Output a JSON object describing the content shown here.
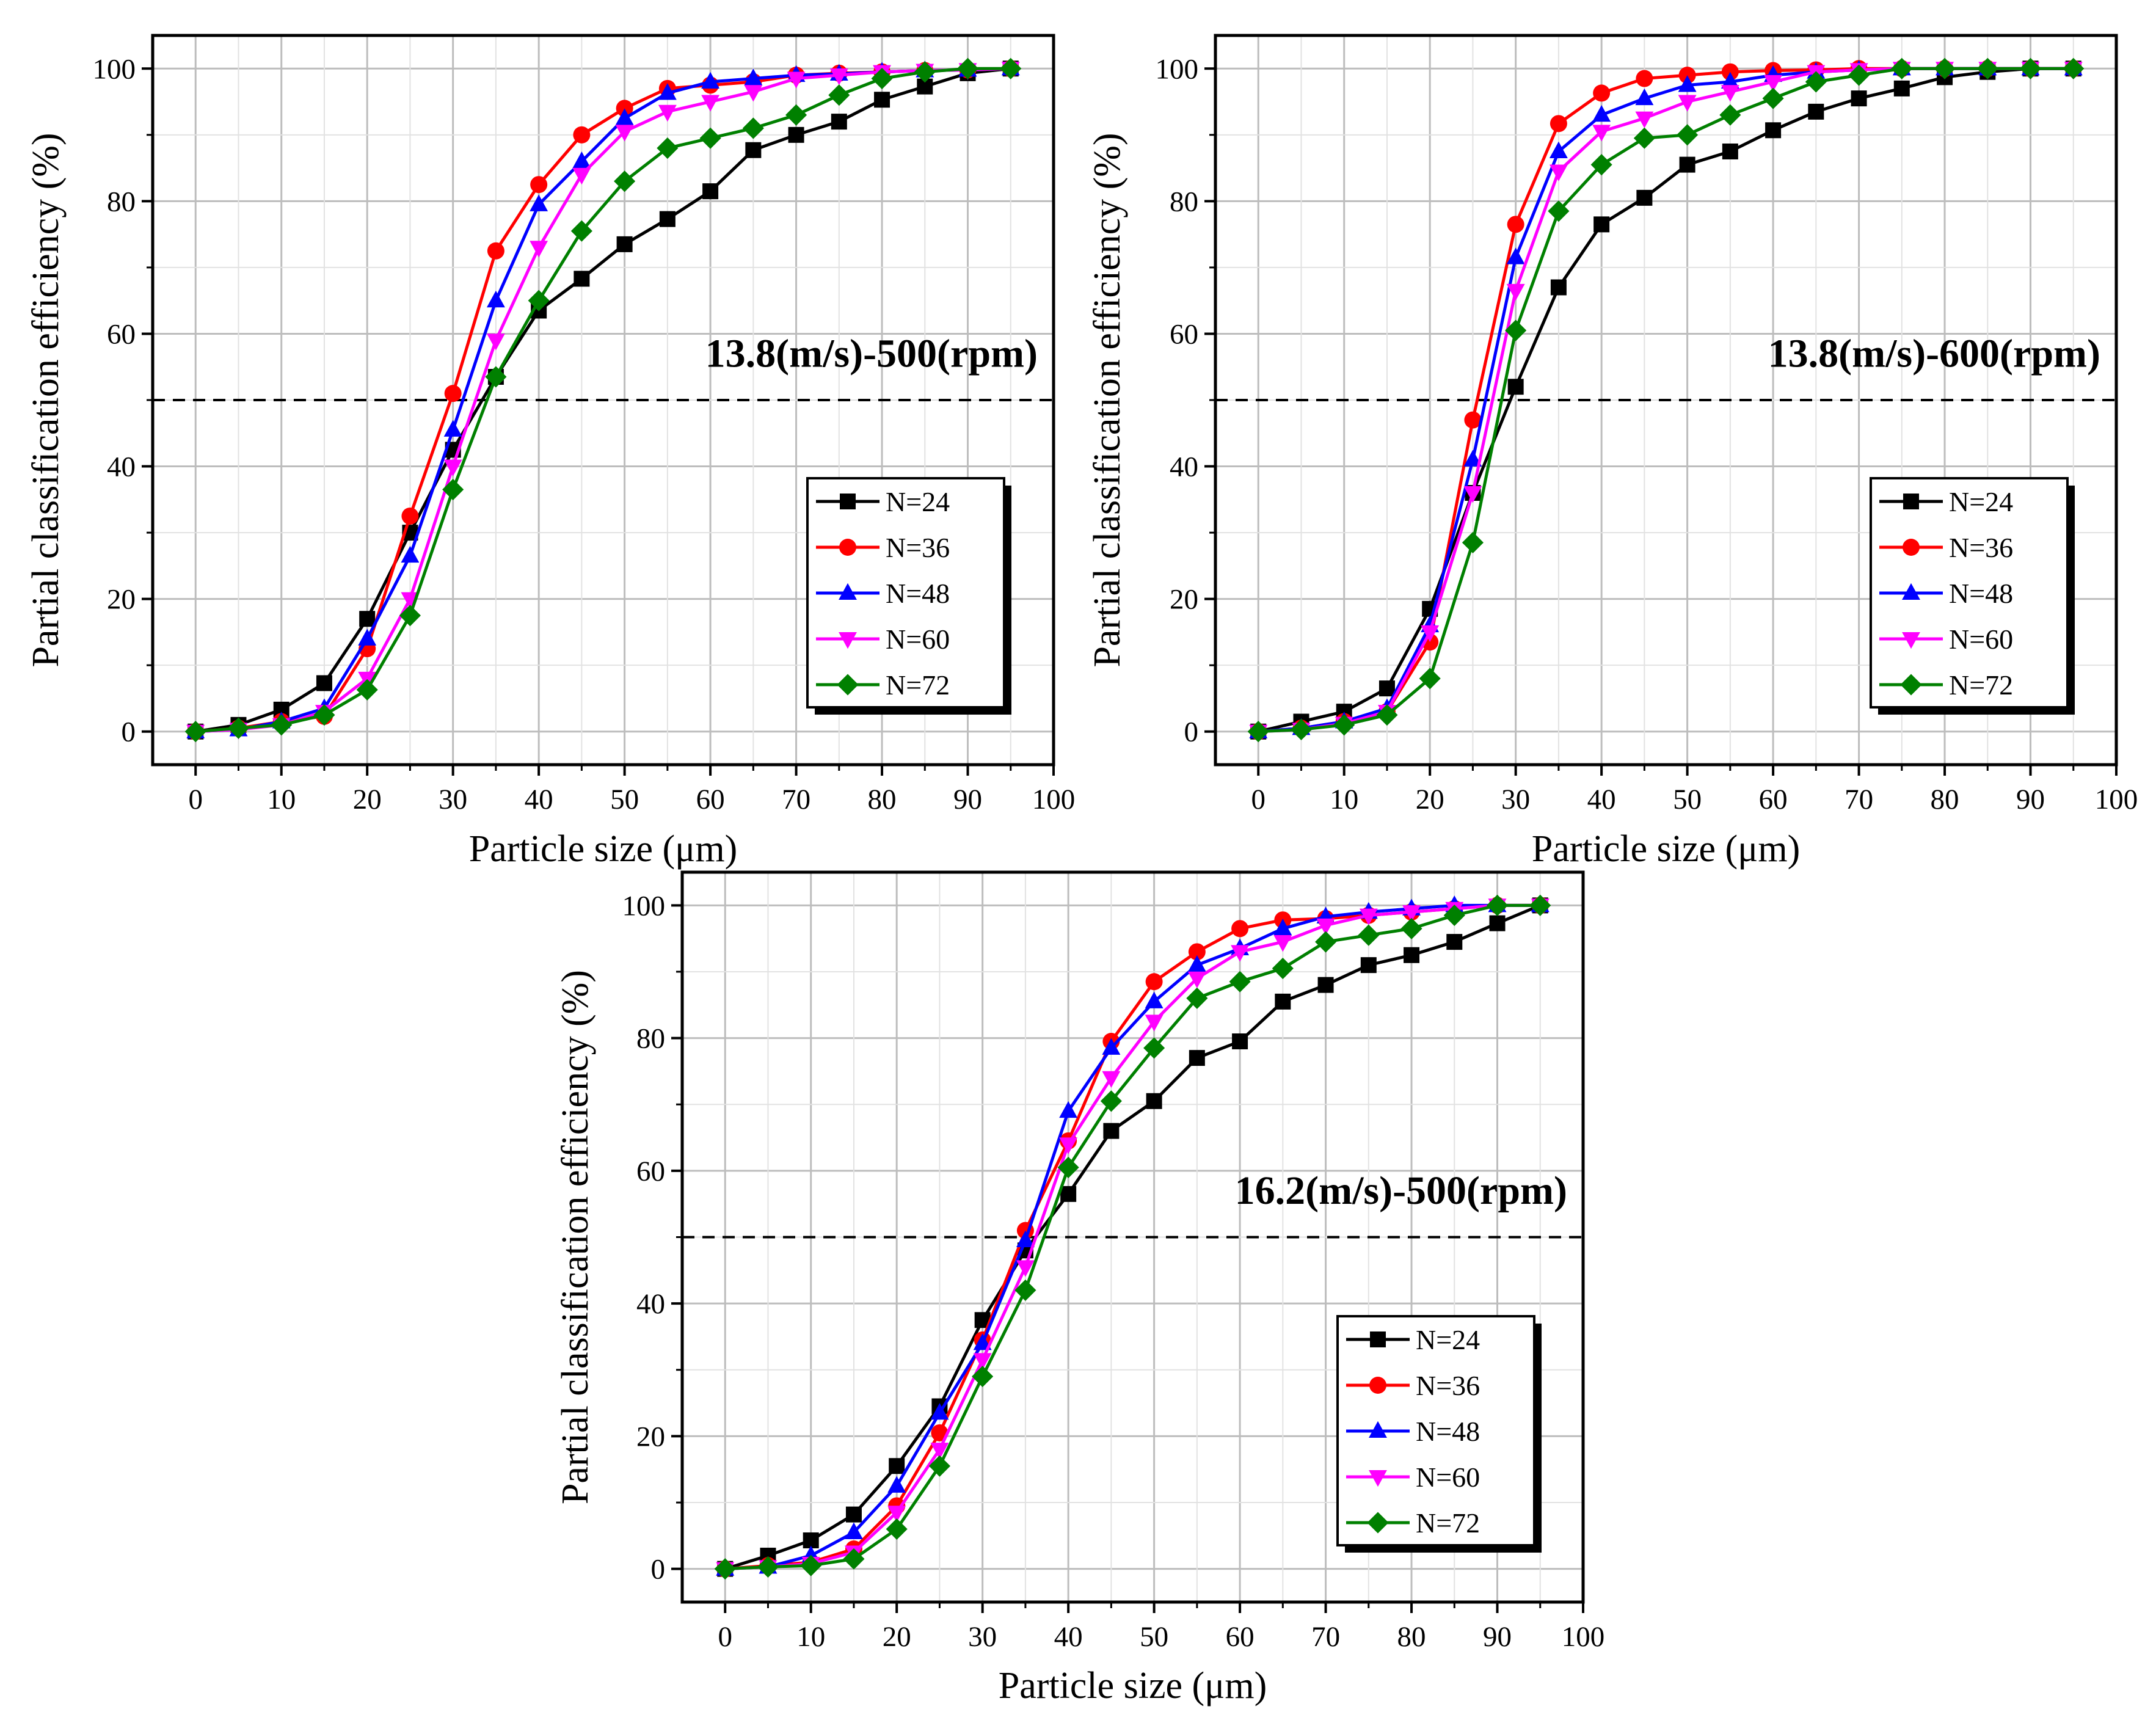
{
  "colors": {
    "N=24": "#000000",
    "N=36": "#ff0000",
    "N=48": "#0000ff",
    "N=60": "#ff00ff",
    "N=72": "#008000"
  },
  "chart_data": [
    {
      "type": "line",
      "title": "13.8(m/s)-500(rpm)",
      "xlabel": "Particle size (μm)",
      "ylabel": "Partial classification efficiency (%)",
      "xlim": [
        -5,
        100
      ],
      "ylim": [
        -5,
        105
      ],
      "xticks": [
        0,
        10,
        20,
        30,
        40,
        50,
        60,
        70,
        80,
        90,
        100
      ],
      "yticks": [
        0,
        20,
        40,
        60,
        80,
        100
      ],
      "reference_line_y": 50,
      "legend_position": "lower-right",
      "x": [
        0,
        5,
        10,
        15,
        20,
        25,
        30,
        35,
        40,
        45,
        50,
        55,
        60,
        65,
        70,
        75,
        80,
        85,
        90,
        95
      ],
      "series": [
        {
          "name": "N=24",
          "marker": "square",
          "values": [
            0,
            1,
            3.3,
            7.3,
            17,
            30,
            42.5,
            53.5,
            63.5,
            68.3,
            73.5,
            77.3,
            81.5,
            87.7,
            90,
            92,
            95.3,
            97.3,
            99.3,
            100
          ]
        },
        {
          "name": "N=36",
          "marker": "circle",
          "values": [
            0,
            0.5,
            1.5,
            2.3,
            12.5,
            32.5,
            51,
            72.5,
            82.5,
            90,
            94,
            97,
            97.5,
            98,
            99,
            99.3,
            99.5,
            99.7,
            99.8,
            100
          ]
        },
        {
          "name": "N=48",
          "marker": "triangle-up",
          "values": [
            0,
            0.3,
            1.5,
            3.5,
            14,
            26.5,
            45.5,
            65,
            79.5,
            86,
            92.5,
            96.3,
            98,
            98.5,
            99,
            99.2,
            99.5,
            99.7,
            99.8,
            100
          ]
        },
        {
          "name": "N=60",
          "marker": "triangle-down",
          "values": [
            0,
            0.3,
            1,
            3,
            8,
            20,
            40,
            59,
            73,
            84,
            90.5,
            93.5,
            95,
            96.5,
            98.5,
            99,
            99.5,
            99.7,
            99.8,
            100
          ]
        },
        {
          "name": "N=72",
          "marker": "diamond",
          "values": [
            0,
            0.5,
            1,
            2.5,
            6.3,
            17.5,
            36.5,
            53.5,
            65,
            75.5,
            83,
            88,
            89.5,
            91,
            93,
            96,
            98.5,
            99.5,
            100,
            100
          ]
        }
      ]
    },
    {
      "type": "line",
      "title": "13.8(m/s)-600(rpm)",
      "xlabel": "Particle size (μm)",
      "ylabel": "Partial classification efficiency (%)",
      "xlim": [
        -5,
        100
      ],
      "ylim": [
        -5,
        105
      ],
      "xticks": [
        0,
        10,
        20,
        30,
        40,
        50,
        60,
        70,
        80,
        90,
        100
      ],
      "yticks": [
        0,
        20,
        40,
        60,
        80,
        100
      ],
      "reference_line_y": 50,
      "legend_position": "lower-right",
      "x": [
        0,
        5,
        10,
        15,
        20,
        25,
        30,
        35,
        40,
        45,
        50,
        55,
        60,
        65,
        70,
        75,
        80,
        85,
        90,
        95
      ],
      "series": [
        {
          "name": "N=24",
          "marker": "square",
          "values": [
            0,
            1.5,
            3,
            6.5,
            18.5,
            36,
            52,
            67,
            76.5,
            80.5,
            85.5,
            87.5,
            90.7,
            93.5,
            95.5,
            97,
            98.7,
            99.5,
            100,
            100
          ]
        },
        {
          "name": "N=36",
          "marker": "circle",
          "values": [
            0,
            0.5,
            1.5,
            3,
            13.5,
            47,
            76.5,
            91.7,
            96.3,
            98.5,
            99,
            99.5,
            99.7,
            99.8,
            100,
            100,
            100,
            100,
            100,
            100
          ]
        },
        {
          "name": "N=48",
          "marker": "triangle-up",
          "values": [
            0,
            0.5,
            1.5,
            3.5,
            16,
            41,
            71.5,
            87.5,
            93,
            95.5,
            97.5,
            98,
            99,
            99.5,
            99.8,
            100,
            100,
            100,
            100,
            100
          ]
        },
        {
          "name": "N=60",
          "marker": "triangle-down",
          "values": [
            0,
            0.3,
            1.2,
            3,
            15,
            36,
            66.5,
            84.5,
            90.5,
            92.5,
            95,
            96.5,
            98,
            99.5,
            99.8,
            100,
            100,
            100,
            100,
            100
          ]
        },
        {
          "name": "N=72",
          "marker": "diamond",
          "values": [
            0,
            0.3,
            1,
            2.5,
            8,
            28.5,
            60.5,
            78.5,
            85.5,
            89.5,
            90,
            93,
            95.5,
            98,
            99,
            100,
            100,
            100,
            100,
            100
          ]
        }
      ]
    },
    {
      "type": "line",
      "title": "16.2(m/s)-500(rpm)",
      "xlabel": "Particle size (μm)",
      "ylabel": "Partial classification efficiency (%)",
      "xlim": [
        -5,
        100
      ],
      "ylim": [
        -5,
        105
      ],
      "xticks": [
        0,
        10,
        20,
        30,
        40,
        50,
        60,
        70,
        80,
        90,
        100
      ],
      "yticks": [
        0,
        20,
        40,
        60,
        80,
        100
      ],
      "reference_line_y": 50,
      "legend_position": "lower-right",
      "x": [
        0,
        5,
        10,
        15,
        20,
        25,
        30,
        35,
        40,
        45,
        50,
        55,
        60,
        65,
        70,
        75,
        80,
        85,
        90,
        95
      ],
      "series": [
        {
          "name": "N=24",
          "marker": "square",
          "values": [
            0,
            2,
            4.3,
            8.2,
            15.5,
            24.5,
            37.5,
            48,
            56.5,
            66,
            70.5,
            77,
            79.5,
            85.5,
            88,
            91,
            92.5,
            94.5,
            97.3,
            100
          ]
        },
        {
          "name": "N=36",
          "marker": "circle",
          "values": [
            0,
            0.5,
            1,
            3,
            9.5,
            20.5,
            34.5,
            51,
            64.5,
            79.5,
            88.5,
            93,
            96.5,
            97.8,
            98,
            98.5,
            99,
            99.5,
            100,
            100
          ]
        },
        {
          "name": "N=48",
          "marker": "triangle-up",
          "values": [
            0,
            0.3,
            2,
            5.5,
            12.5,
            23.5,
            34,
            49.5,
            69,
            78.5,
            85.5,
            91,
            93.5,
            96.5,
            98.3,
            99,
            99.5,
            100,
            100,
            100
          ]
        },
        {
          "name": "N=60",
          "marker": "triangle-down",
          "values": [
            0,
            0.3,
            0.8,
            2.5,
            8.5,
            18,
            31.5,
            45.5,
            64,
            74,
            82.5,
            89,
            93,
            94.5,
            97,
            98.5,
            99,
            99.5,
            100,
            100
          ]
        },
        {
          "name": "N=72",
          "marker": "diamond",
          "values": [
            0,
            0.3,
            0.5,
            1.5,
            6,
            15.5,
            29,
            42,
            60.5,
            70.5,
            78.5,
            86,
            88.5,
            90.5,
            94.5,
            95.5,
            96.5,
            98.5,
            100,
            100
          ]
        }
      ]
    }
  ]
}
